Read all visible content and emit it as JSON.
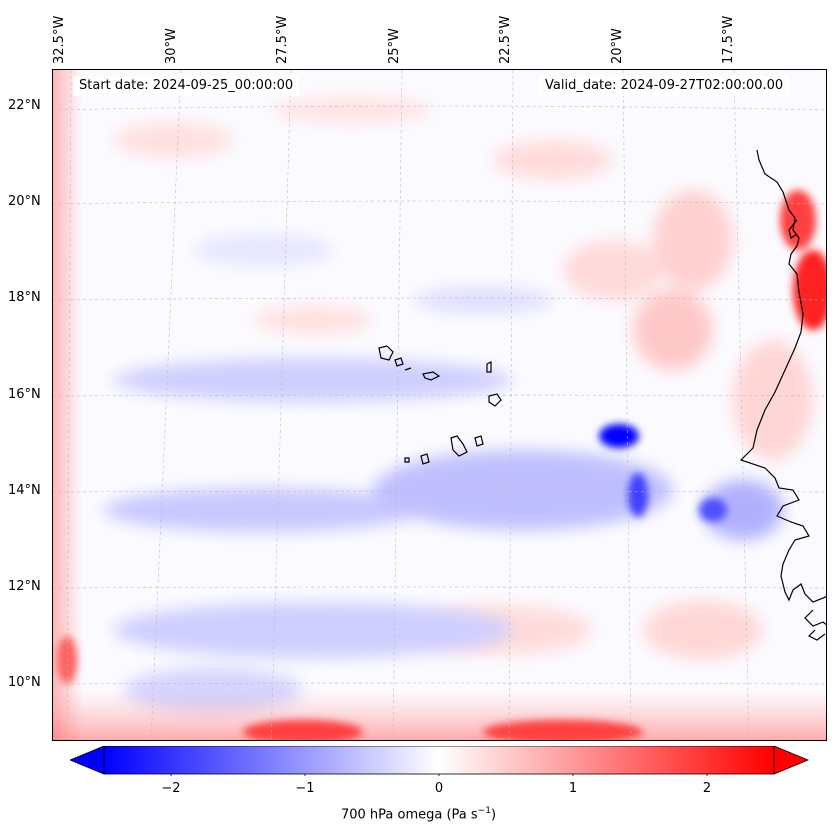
{
  "map": {
    "start_date": "Start date: 2024-09-25_00:00:00",
    "valid_date": "Valid_date: 2024-09-27T02:00:00.00",
    "lon_labels": [
      "32.5°W",
      "30°W",
      "27.5°W",
      "25°W",
      "22.5°W",
      "20°W",
      "17.5°W"
    ],
    "lat_labels": [
      "22°N",
      "20°N",
      "18°N",
      "16°N",
      "14°N",
      "12°N",
      "10°N"
    ],
    "colorbar_label_main": "700 hPa omega (Pa s",
    "colorbar_label_sup": "−1",
    "colorbar_label_end": ")",
    "colorbar_ticks": [
      "−2",
      "−1",
      "0",
      "1",
      "2"
    ],
    "colormap": "bwr",
    "color_min": "#0000ff",
    "color_mid": "#ffffff",
    "color_max": "#ff0000"
  }
}
